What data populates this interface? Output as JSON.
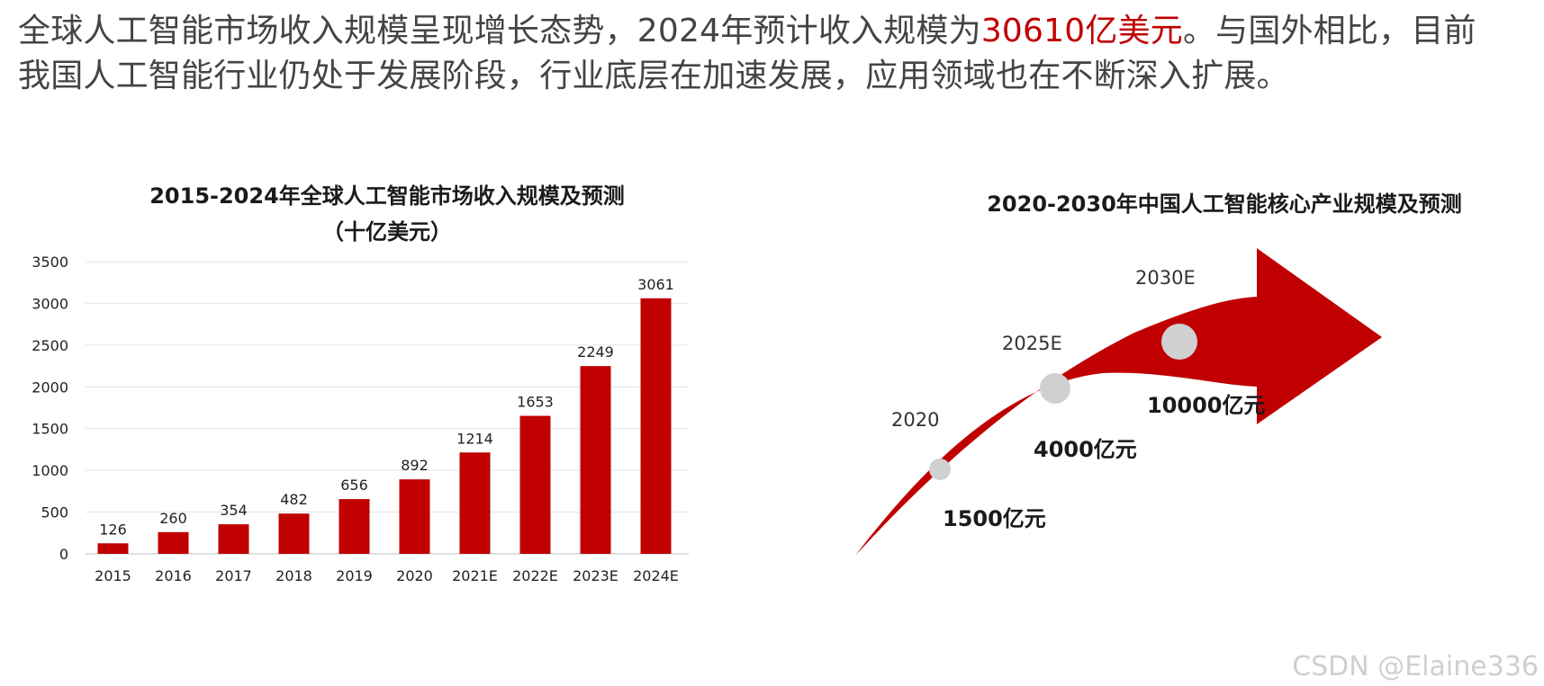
{
  "intro": {
    "line1_a": "全球人工智能市场收入规模呈现增长态势，2024年预计收入规模为",
    "line1_hl": "30610亿美元",
    "line1_b": "。与国外相比，目前",
    "line2": "我国人工智能行业仍处于发展阶段，行业底层在加速发展，应用领域也在不断深入扩展。"
  },
  "chart_data": [
    {
      "type": "bar",
      "title": "2015-2024年全球人工智能市场收入规模及预测",
      "subtitle": "（十亿美元）",
      "categories": [
        "2015",
        "2016",
        "2017",
        "2018",
        "2019",
        "2020",
        "2021E",
        "2022E",
        "2023E",
        "2024E"
      ],
      "values": [
        126,
        260,
        354,
        482,
        656,
        892,
        1214,
        1653,
        2249,
        3061
      ],
      "ylim": [
        0,
        3500
      ],
      "yticks": [
        0,
        500,
        1000,
        1500,
        2000,
        2500,
        3000,
        3500
      ],
      "grid": true,
      "color": "#c00000"
    },
    {
      "type": "line",
      "title": "2020-2030年中国人工智能核心产业规模及预测",
      "categories": [
        "2020",
        "2025E",
        "2030E"
      ],
      "labels": [
        "1500亿元",
        "4000亿元",
        "10000亿元"
      ],
      "values": [
        1500,
        4000,
        10000
      ],
      "color": "#c00000",
      "marker_color": "#d0d0d0"
    }
  ],
  "watermark": "CSDN @Elaine336"
}
